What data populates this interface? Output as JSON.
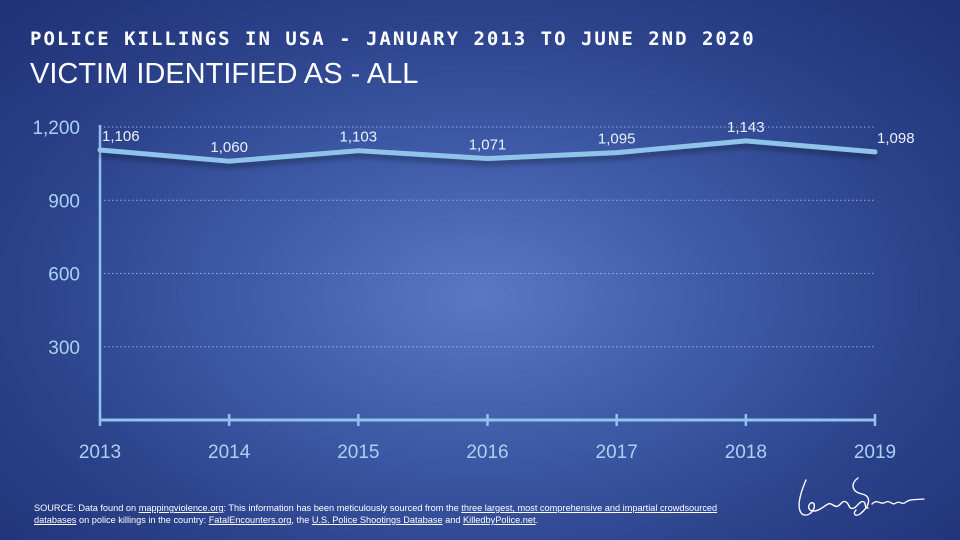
{
  "header": {
    "title": "POLICE KILLINGS IN USA - JANUARY 2013 TO JUNE 2ND 2020",
    "subtitle": "VICTIM IDENTIFIED AS - ALL"
  },
  "chart_data": {
    "type": "line",
    "title": "POLICE KILLINGS IN USA - JANUARY 2013 TO JUNE 2ND 2020",
    "subtitle": "VICTIM IDENTIFIED AS - ALL",
    "x": [
      "2013",
      "2014",
      "2015",
      "2016",
      "2017",
      "2018",
      "2019"
    ],
    "series": [
      {
        "values": [
          1106,
          1060,
          1103,
          1071,
          1095,
          1143,
          1098
        ]
      }
    ],
    "data_labels": [
      "1,106",
      "1,060",
      "1,103",
      "1,071",
      "1,095",
      "1,143",
      "1,098"
    ],
    "y_ticks": [
      300,
      600,
      900,
      1200
    ],
    "y_tick_labels": [
      "300",
      "600",
      "900",
      "1,200"
    ],
    "ylim": [
      0,
      1200
    ],
    "grid": "horizontal dotted",
    "xlabel": "",
    "ylabel": ""
  },
  "source": {
    "prefix": "SOURCE: Data found on ",
    "link1": "mappingviolence.org",
    "mid1": ": This information has been meticulously sourced from the ",
    "link2": "three largest, most comprehensive and impartial crowdsourced databases",
    "mid2": " on police killings in the country: ",
    "link3": "FatalEncounters.org",
    "mid3": ", the ",
    "link4": "U.S. Police Shootings Database",
    "mid4": " and ",
    "link5": "KilledbyPolice.net",
    "suffix": "."
  },
  "colors": {
    "line": "#8fc3ea",
    "axis": "#8fc3ea",
    "tick_text": "#a9d2f2",
    "grid": "#b9cdea",
    "label_text": "#e8f1fb"
  }
}
